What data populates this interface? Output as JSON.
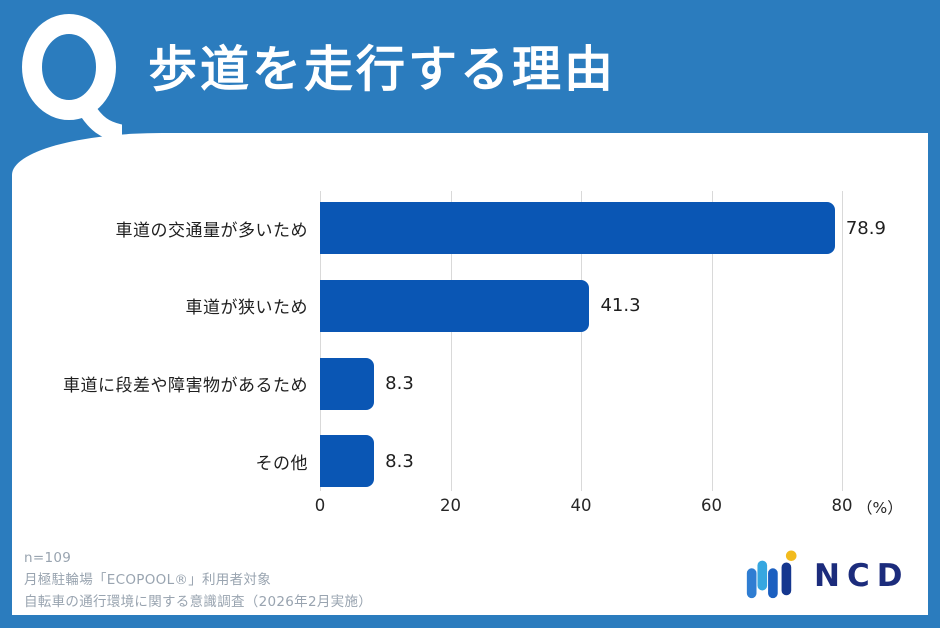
{
  "header": {
    "q_mark": "Q",
    "title": "歩道を走行する理由"
  },
  "chart_data": {
    "type": "bar",
    "orientation": "horizontal",
    "title": "歩道を走行する理由",
    "categories": [
      "車道の交通量が多いため",
      "車道が狭いため",
      "車道に段差や障害物があるため",
      "その他"
    ],
    "values": [
      78.9,
      41.3,
      8.3,
      8.3
    ],
    "value_labels": [
      "78.9",
      "41.3",
      "8.3",
      "8.3"
    ],
    "x_ticks": [
      0,
      20,
      40,
      60,
      80
    ],
    "x_tick_labels": [
      "0",
      "20",
      "40",
      "60",
      "80"
    ],
    "x_unit_label": "（%）",
    "xlim": [
      0,
      80
    ],
    "grid": true,
    "legend": false,
    "bar_color": "#0a56b4",
    "gridline_color": "#d9d9d9"
  },
  "footer": {
    "notes": [
      "n=109",
      "月極駐輪場「ECOPOOL®」利用者対象",
      "自転車の通行環境に関する意識調査（2026年2月実施）"
    ]
  },
  "logo": {
    "text": "NCD"
  },
  "colors": {
    "frame_blue": "#2b7cbe",
    "bar_blue": "#0a56b4",
    "note_gray": "#99a4b0",
    "logo_navy": "#1c2c7c",
    "logo_light_blue": "#36a7e0",
    "logo_mid_blue": "#2f7dd2",
    "logo_dark_blue": "#15378f",
    "logo_yellow": "#f2bb1d"
  }
}
